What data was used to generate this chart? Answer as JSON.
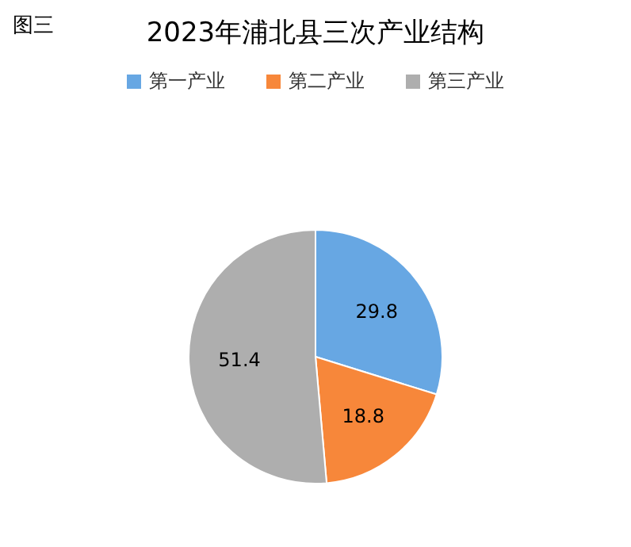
{
  "chart_data": {
    "type": "pie",
    "title": "2023年浦北县三次产业结构",
    "annotations": [
      "图三"
    ],
    "categories": [
      "第一产业",
      "第二产业",
      "第三产业"
    ],
    "values": [
      29.8,
      18.8,
      51.4
    ],
    "colors": [
      "#67a7e3",
      "#f7873a",
      "#aeaeae"
    ],
    "data_labels": true,
    "legend": "top"
  }
}
